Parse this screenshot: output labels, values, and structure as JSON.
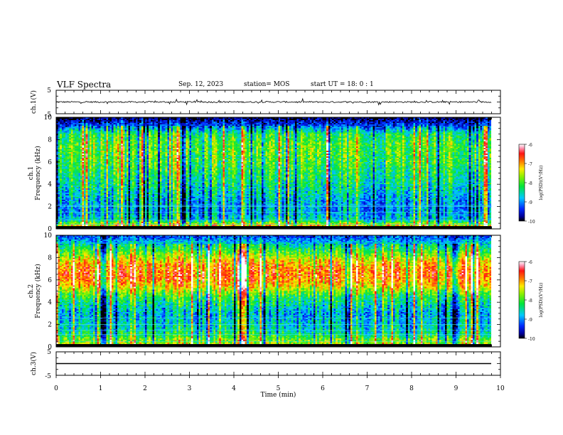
{
  "header": {
    "title": "VLF Spectra",
    "date": "Sep. 12, 2023",
    "station": "station= MOS",
    "start_ut": "start  UT =   18: 0  : 1"
  },
  "chart_data": [
    {
      "type": "line",
      "panel": "ch1-waveform",
      "ylabel": "ch.1(V)",
      "ylim": [
        -5,
        5
      ],
      "y_ticks": [
        "5",
        "-5"
      ],
      "xlim": [
        0,
        10
      ],
      "baseline": 0,
      "noise_amplitude": 0.6
    },
    {
      "type": "heatmap",
      "panel": "ch1-spectrogram",
      "ylabel_top": "ch.1",
      "ylabel": "Frequency (kHz)",
      "xlim": [
        0,
        10
      ],
      "ylim": [
        0,
        10
      ],
      "y_ticks": [
        "0",
        "2",
        "4",
        "6",
        "8",
        "10"
      ],
      "data_end_min": 9.8,
      "colorbar": {
        "label": "log(PSD)(V²/Hz)",
        "range": [
          -10,
          -6
        ],
        "ticks": [
          "-6",
          "-7",
          "-8",
          "-9",
          "-10"
        ]
      },
      "intensity_profile": [
        {
          "f": 0.0,
          "v": -6.8
        },
        {
          "f": 0.3,
          "v": -7.2
        },
        {
          "f": 0.8,
          "v": -8.6
        },
        {
          "f": 1.5,
          "v": -8.9
        },
        {
          "f": 2.5,
          "v": -8.8
        },
        {
          "f": 4.0,
          "v": -8.4
        },
        {
          "f": 6.0,
          "v": -8.0
        },
        {
          "f": 7.5,
          "v": -7.9
        },
        {
          "f": 8.5,
          "v": -8.2
        },
        {
          "f": 9.3,
          "v": -9.3
        },
        {
          "f": 10.0,
          "v": -10.0
        }
      ],
      "tone_lines_khz": [
        0.4,
        0.8,
        1.5,
        2.0,
        2.1
      ]
    },
    {
      "type": "heatmap",
      "panel": "ch2-spectrogram",
      "ylabel_top": "ch.2",
      "ylabel": "Frequency (kHz)",
      "xlim": [
        0,
        10
      ],
      "ylim": [
        0,
        10
      ],
      "y_ticks": [
        "0",
        "2",
        "4",
        "6",
        "8",
        "10"
      ],
      "data_end_min": 9.8,
      "colorbar": {
        "label": "log(PSD)(V²/Hz)",
        "range": [
          -10,
          -6
        ],
        "ticks": [
          "-6",
          "-7",
          "-8",
          "-9",
          "-10"
        ]
      },
      "intensity_profile": [
        {
          "f": 0.0,
          "v": -7.4
        },
        {
          "f": 0.5,
          "v": -7.8
        },
        {
          "f": 1.5,
          "v": -8.6
        },
        {
          "f": 3.0,
          "v": -8.9
        },
        {
          "f": 4.5,
          "v": -8.2
        },
        {
          "f": 5.5,
          "v": -7.2
        },
        {
          "f": 6.5,
          "v": -6.8
        },
        {
          "f": 7.5,
          "v": -7.1
        },
        {
          "f": 8.5,
          "v": -8.0
        },
        {
          "f": 9.5,
          "v": -8.9
        },
        {
          "f": 10.0,
          "v": -9.4
        }
      ],
      "tone_lines_khz": [
        0.5,
        1.1,
        1.5,
        2.0,
        2.6
      ]
    },
    {
      "type": "line",
      "panel": "ch3-waveform",
      "ylabel": "ch.3(V)",
      "ylim": [
        -5,
        5
      ],
      "y_ticks": [
        "5",
        "-5"
      ],
      "xlim": [
        0,
        10
      ],
      "xlabel": "Time (min)",
      "x_ticks": [
        "0",
        "1",
        "2",
        "3",
        "4",
        "5",
        "6",
        "7",
        "8",
        "9",
        "10"
      ],
      "baseline": 0,
      "noise_amplitude": 0
    }
  ]
}
